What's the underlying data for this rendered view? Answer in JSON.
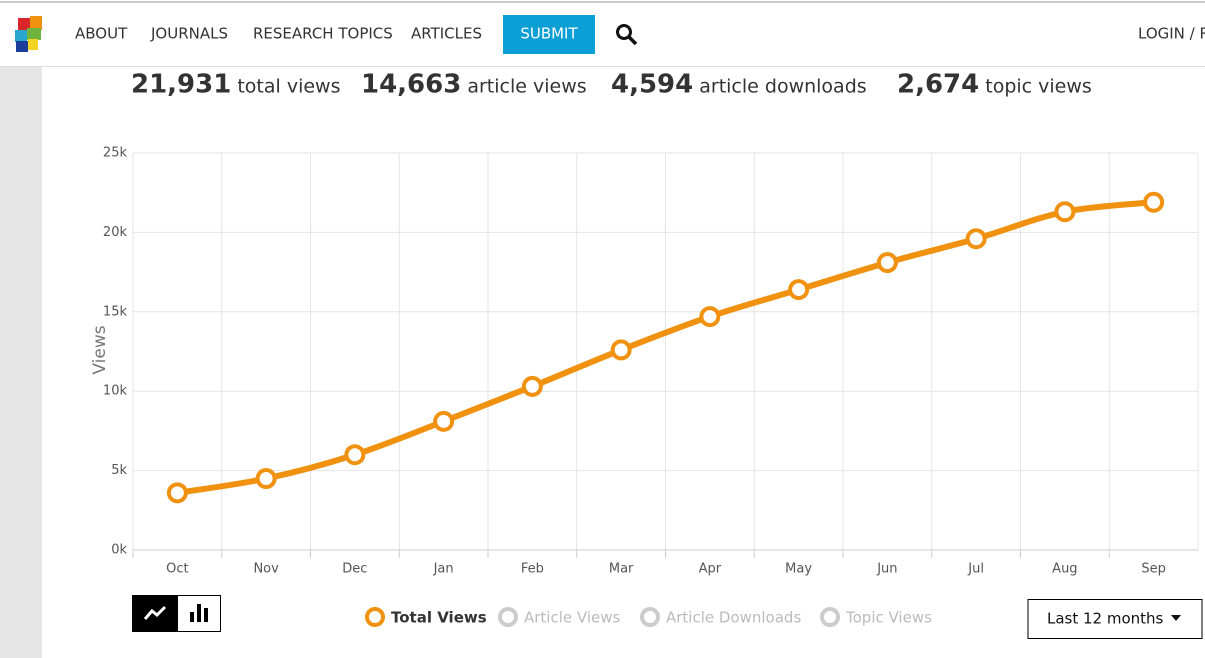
{
  "nav": {
    "items": [
      "ABOUT",
      "JOURNALS",
      "RESEARCH TOPICS",
      "ARTICLES"
    ],
    "submit": "SUBMIT",
    "login": "LOGIN / REGISTER"
  },
  "stats": [
    {
      "number": "21,931",
      "label": "total views"
    },
    {
      "number": "14,663",
      "label": "article views"
    },
    {
      "number": "4,594",
      "label": "article downloads"
    },
    {
      "number": "2,674",
      "label": "topic views"
    }
  ],
  "chart_data": {
    "type": "line",
    "y_label": "Views",
    "categories": [
      "Oct",
      "Nov",
      "Dec",
      "Jan",
      "Feb",
      "Mar",
      "Apr",
      "May",
      "Jun",
      "Jul",
      "Aug",
      "Sep"
    ],
    "series": [
      {
        "name": "Total Views",
        "color": "#f0920f",
        "values": [
          3600,
          4500,
          6000,
          8100,
          10300,
          12600,
          14700,
          16400,
          18100,
          19600,
          21300,
          21900
        ]
      },
      {
        "name": "Article Views",
        "color": "#cccccc",
        "values": null
      },
      {
        "name": "Article Downloads",
        "color": "#cccccc",
        "values": null
      },
      {
        "name": "Topic Views",
        "color": "#cccccc",
        "values": null
      }
    ],
    "ylim": [
      0,
      25000
    ],
    "yticks": [
      {
        "value": 0,
        "label": "0k"
      },
      {
        "value": 5000,
        "label": "5k"
      },
      {
        "value": 10000,
        "label": "10k"
      },
      {
        "value": 15000,
        "label": "15k"
      },
      {
        "value": 20000,
        "label": "20k"
      },
      {
        "value": 25000,
        "label": "25k"
      }
    ],
    "grid": true
  },
  "range_select": "Last 12 months"
}
